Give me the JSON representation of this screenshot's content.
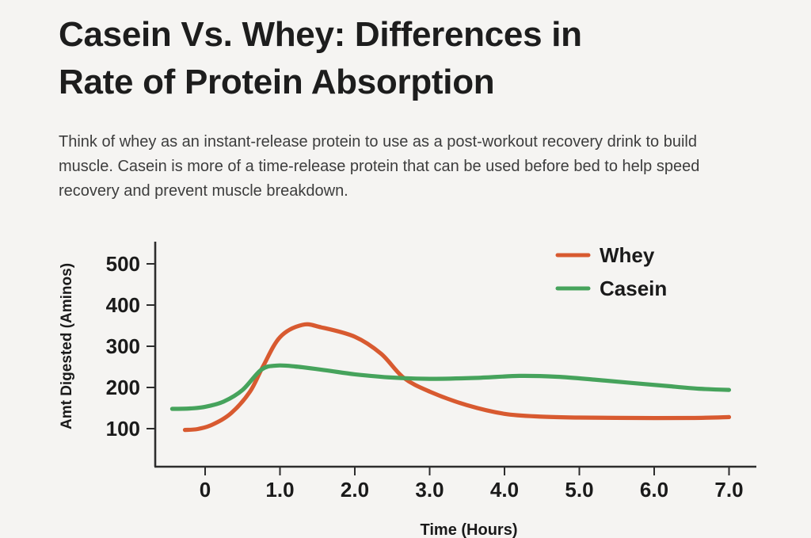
{
  "page": {
    "title_lines": [
      "Casein Vs. Whey: Differences in",
      "Rate of Protein Absorption"
    ],
    "intro_lines": [
      "Think of whey as an instant-release protein to use as a post-workout recovery drink to build",
      "muscle. Casein is more of a time-release protein that can be used before bed to help speed",
      "recovery and prevent muscle breakdown."
    ]
  },
  "colors": {
    "background": "#f5f4f2",
    "title_text": "#1d1d1d",
    "body_text": "#3d3d3d",
    "axis": "#2d2d2d",
    "tick_label": "#1a1a1a",
    "whey": "#d85a30",
    "casein": "#46a35c"
  },
  "chart_data": {
    "type": "line",
    "title": "",
    "xlabel": "Time (Hours)",
    "ylabel": "Amt Digested (Aminos)",
    "xlim": [
      -0.68,
      7.37
    ],
    "ylim": [
      8,
      554
    ],
    "grid": false,
    "legend_position": "top-right",
    "x_ticks": {
      "values": [
        0,
        1,
        2,
        3,
        4,
        5,
        6,
        7
      ],
      "labels": [
        "0",
        "1.0",
        "2.0",
        "3.0",
        "4.0",
        "5.0",
        "6.0",
        "7.0"
      ]
    },
    "y_ticks": {
      "values": [
        100,
        200,
        300,
        400,
        500
      ],
      "labels": [
        "100",
        "200",
        "300",
        "400",
        "500"
      ]
    },
    "series": [
      {
        "name": "Whey",
        "color": "#d85a30",
        "points": [
          [
            -0.27,
            97
          ],
          [
            -0.1,
            99
          ],
          [
            0.1,
            110
          ],
          [
            0.35,
            138
          ],
          [
            0.6,
            190
          ],
          [
            0.77,
            250
          ],
          [
            1.0,
            322
          ],
          [
            1.3,
            352
          ],
          [
            1.55,
            346
          ],
          [
            2.0,
            323
          ],
          [
            2.35,
            282
          ],
          [
            2.65,
            224
          ],
          [
            3.0,
            190
          ],
          [
            3.5,
            157
          ],
          [
            4.0,
            136
          ],
          [
            4.5,
            129
          ],
          [
            5.0,
            127
          ],
          [
            5.75,
            126
          ],
          [
            6.5,
            126
          ],
          [
            7.0,
            128
          ]
        ]
      },
      {
        "name": "Casein",
        "color": "#46a35c",
        "points": [
          [
            -0.44,
            148
          ],
          [
            -0.2,
            149
          ],
          [
            0,
            153
          ],
          [
            0.25,
            166
          ],
          [
            0.5,
            194
          ],
          [
            0.75,
            243
          ],
          [
            0.95,
            253
          ],
          [
            1.2,
            251
          ],
          [
            1.6,
            242
          ],
          [
            2.0,
            232
          ],
          [
            2.5,
            224
          ],
          [
            3.0,
            221
          ],
          [
            3.6,
            223
          ],
          [
            4.2,
            228
          ],
          [
            4.7,
            226
          ],
          [
            5.2,
            219
          ],
          [
            5.7,
            211
          ],
          [
            6.2,
            203
          ],
          [
            6.6,
            197
          ],
          [
            7.0,
            194
          ]
        ]
      }
    ]
  }
}
